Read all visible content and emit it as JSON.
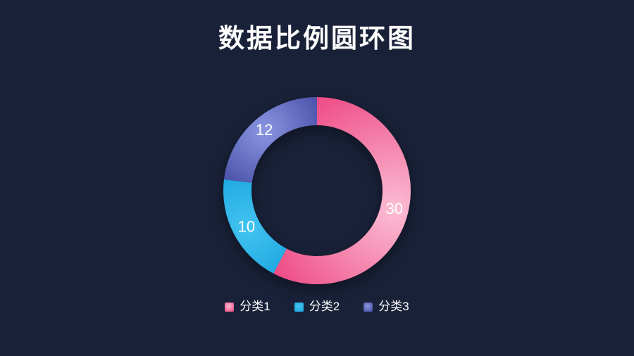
{
  "page": {
    "background_color": "#192138",
    "text_color": "#ffffff"
  },
  "title": "数据比例圆环图",
  "chart_data": {
    "type": "pie",
    "subtype": "donut",
    "title": "数据比例圆环图",
    "categories": [
      "分类1",
      "分类2",
      "分类3"
    ],
    "values": [
      30,
      10,
      12
    ],
    "total": 52,
    "start_angle_deg": 0,
    "direction": "clockwise",
    "legend_position": "bottom",
    "label_color": "#ffffff",
    "series": [
      {
        "name": "分类1",
        "value": 30,
        "color": "#ee4a84",
        "highlight": "#fbbdd4"
      },
      {
        "name": "分类2",
        "value": 10,
        "color": "#1ea8e1",
        "highlight": "#43c4f0"
      },
      {
        "name": "分类3",
        "value": 12,
        "color": "#4a52a9",
        "highlight": "#8a96e2"
      }
    ]
  }
}
